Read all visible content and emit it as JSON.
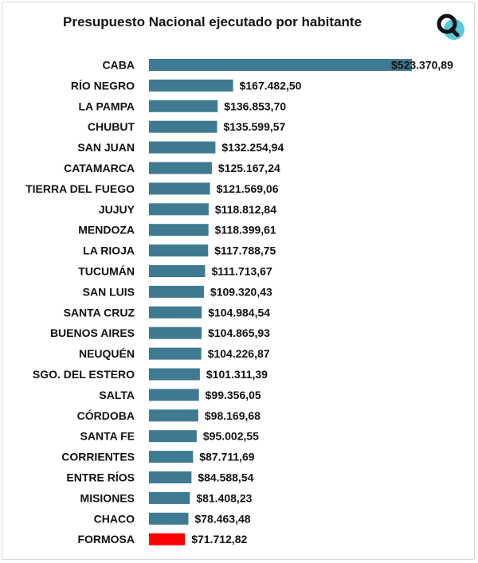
{
  "title": "Presupuesto Nacional ejecutado por habitante",
  "logo": {
    "icon": "magnifier-logo-icon",
    "colors": [
      "#111111",
      "#5bc8d8"
    ]
  },
  "colors": {
    "bar": "#3f7a93",
    "highlight": "#ff0000",
    "text": "#111111"
  },
  "chart_data": {
    "type": "bar",
    "orientation": "horizontal",
    "title": "Presupuesto Nacional ejecutado por habitante",
    "xlabel": "",
    "ylabel": "",
    "xlim": [
      0,
      523370.89
    ],
    "grid": false,
    "legend": "none",
    "highlight_category": "FORMOSA",
    "categories": [
      "CABA",
      "RÍO NEGRO",
      "LA PAMPA",
      "CHUBUT",
      "SAN JUAN",
      "CATAMARCA",
      "TIERRA DEL FUEGO",
      "JUJUY",
      "MENDOZA",
      "LA RIOJA",
      "TUCUMÁN",
      "SAN LUIS",
      "SANTA CRUZ",
      "BUENOS AIRES",
      "NEUQUÉN",
      "SGO. DEL ESTERO",
      "SALTA",
      "CÓRDOBA",
      "SANTA FE",
      "CORRIENTES",
      "ENTRE RÍOS",
      "MISIONES",
      "CHACO",
      "FORMOSA"
    ],
    "values": [
      523370.89,
      167482.5,
      136853.7,
      135599.57,
      132254.94,
      125167.24,
      121569.06,
      118812.84,
      118399.61,
      117788.75,
      111713.67,
      109320.43,
      104984.54,
      104865.93,
      104226.87,
      101311.39,
      99356.05,
      98169.68,
      95002.55,
      87711.69,
      84588.54,
      81408.23,
      78463.48,
      71712.82
    ],
    "labels": [
      "$523.370,89",
      "$167.482,50",
      "$136.853,70",
      "$135.599,57",
      "$132.254,94",
      "$125.167,24",
      "$121.569,06",
      "$118.812,84",
      "$118.399,61",
      "$117.788,75",
      "$111.713,67",
      "$109.320,43",
      "$104.984,54",
      "$104.865,93",
      "$104.226,87",
      "$101.311,39",
      "$99.356,05",
      "$98.169,68",
      "$95.002,55",
      "$87.711,69",
      "$84.588,54",
      "$81.408,23",
      "$78.463,48",
      "$71.712,82"
    ]
  }
}
